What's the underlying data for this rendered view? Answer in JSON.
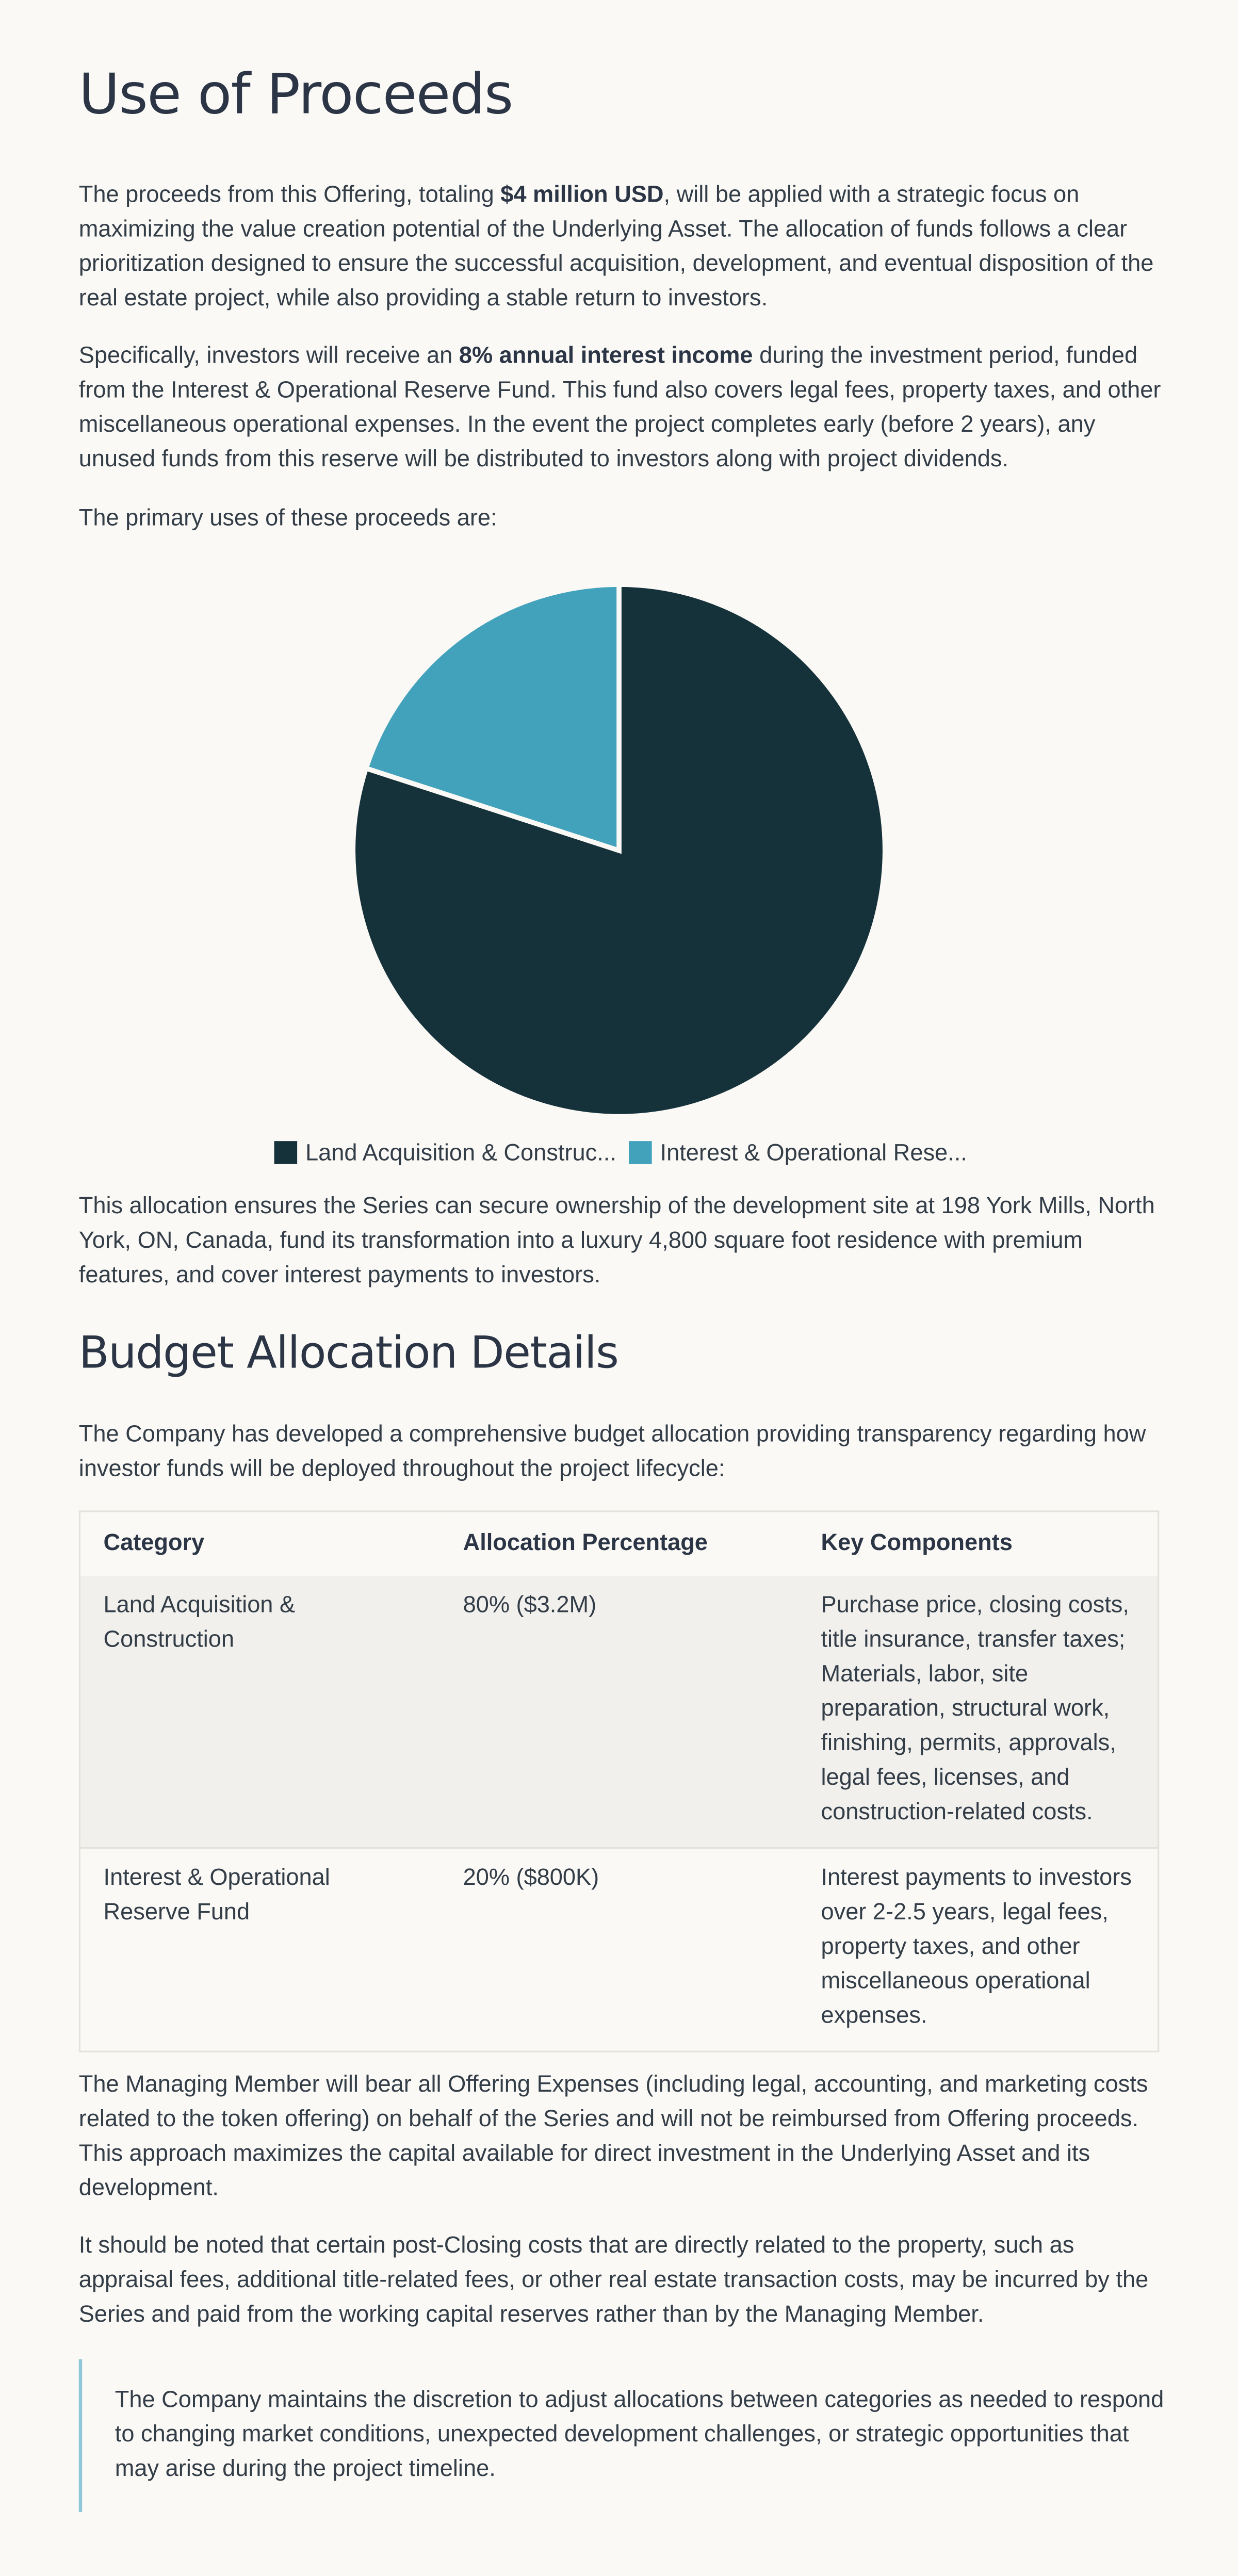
{
  "title": "Use of Proceeds",
  "intro": [
    "The proceeds from this Offering, totaling ",
    "$4 million USD",
    ", will be applied with a strategic focus on maximizing the value creation potential of the Underlying Asset. The allocation of funds follows a clear prioritization designed to ensure the successful acquisition, development, and eventual disposition of the real estate project, while also providing a stable return to investors."
  ],
  "interest": [
    "Specifically, investors will receive an ",
    "8% annual interest income",
    " during the investment period, funded from the Interest & Operational Reserve Fund. This fund also covers legal fees, property taxes, and other miscellaneous operational expenses. In the event the project completes early (before 2 years), any unused funds from this reserve will be distributed to investors along with project dividends."
  ],
  "uses_intro": "The primary uses of these proceeds are:",
  "chart_data": {
    "type": "pie",
    "categories": [
      "Land Acquisition & Construc...",
      "Interest & Operational Rese..."
    ],
    "values": [
      80,
      20
    ],
    "colors": [
      "#15313a",
      "#42a1bb"
    ]
  },
  "allocation_note": "This allocation ensures the Series can secure ownership of the development site at 198 York Mills, North York, ON, Canada, fund its transformation into a luxury 4,800 square foot residence with premium features, and cover interest payments to investors.",
  "budget_heading": "Budget Allocation Details",
  "budget_intro": "The Company has developed a comprehensive budget allocation providing transparency regarding how investor funds will be deployed throughout the project lifecycle:",
  "table": {
    "header": [
      "Category",
      "Allocation Percentage",
      "Key Components"
    ],
    "rows": [
      [
        "Land Acquisition & Construction",
        "80% ($3.2M)",
        "Purchase price, closing costs, title insurance, transfer taxes; Materials, labor, site preparation, structural work, finishing, permits, approvals, legal fees, licenses, and construction-related costs."
      ],
      [
        "Interest & Operational Reserve Fund",
        "20% ($800K)",
        "Interest payments to investors over 2-2.5 years, legal fees, property taxes, and other miscellaneous operational expenses."
      ]
    ]
  },
  "expenses": "The Managing Member will bear all Offering Expenses (including legal, accounting, and marketing costs related to the token offering) on behalf of the Series and will not be reimbursed from Offering proceeds. This approach maximizes the capital available for direct investment in the Underlying Asset and its development.",
  "post_closing": "It should be noted that certain post-Closing costs that are directly related to the property, such as appraisal fees, additional title-related fees, or other real estate transaction costs, may be incurred by the Series and paid from the working capital reserves rather than by the Managing Member.",
  "quote": "The Company maintains the discretion to adjust allocations between categories as needed to respond to changing market conditions, unexpected development challenges, or strategic opportunities that may arise during the project timeline."
}
